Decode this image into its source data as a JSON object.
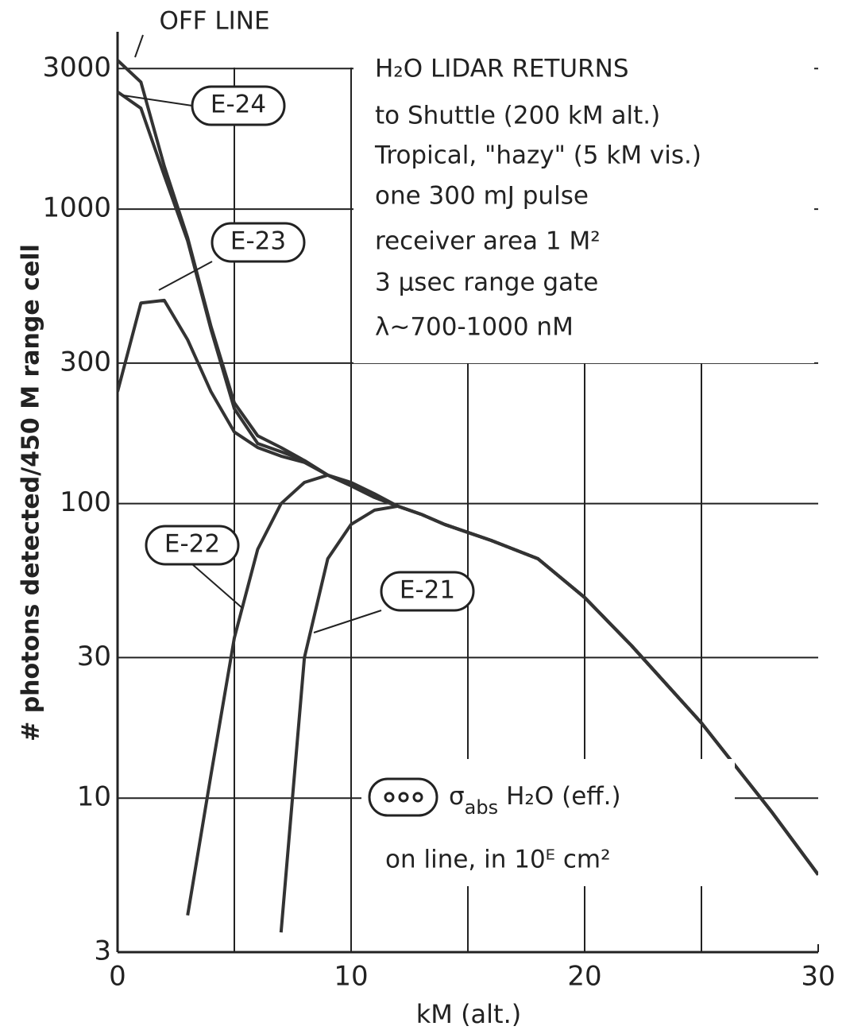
{
  "chart_data": {
    "type": "line",
    "title": "H₂O LIDAR RETURNS",
    "subtitle": [
      "to Shuttle (200 kM alt.)",
      "Tropical, \"hazy\" (5 kM vis.)",
      "one 300 mJ pulse",
      "receiver area 1 M²",
      "3 μsec range gate",
      "λ~700-1000 nM"
    ],
    "xlabel": "kM (alt.)",
    "ylabel": "# photons detected/450 M range cell",
    "x": [
      0,
      1,
      2,
      3,
      4,
      5,
      6,
      7,
      8,
      9,
      10,
      11,
      12,
      13,
      14,
      16,
      18,
      20,
      22,
      25,
      28,
      30
    ],
    "series": [
      {
        "name": "OFF LINE",
        "color": "#333333",
        "values": [
          3200,
          2700,
          1400,
          800,
          400,
          220,
          170,
          155,
          140,
          125,
          115,
          105,
          98,
          92,
          85,
          75,
          65,
          48,
          33,
          18,
          9,
          5.5
        ]
      },
      {
        "name": "E-24",
        "color": "#333333",
        "values": [
          2500,
          2200,
          1300,
          780,
          390,
          210,
          160,
          150,
          140,
          125,
          115,
          105,
          98,
          92,
          85,
          75,
          65,
          48,
          33,
          18,
          9,
          5.5
        ]
      },
      {
        "name": "E-23",
        "color": "#333333",
        "values": [
          240,
          480,
          490,
          360,
          240,
          175,
          155,
          145,
          138,
          125,
          115,
          105,
          98,
          92,
          85,
          75,
          65,
          48,
          33,
          18,
          9,
          5.5
        ]
      },
      {
        "name": "E-22",
        "color": "#333333",
        "values": [
          null,
          null,
          null,
          4,
          12,
          35,
          70,
          100,
          118,
          125,
          118,
          108,
          98,
          92,
          85,
          75,
          65,
          48,
          33,
          18,
          9,
          5.5
        ]
      },
      {
        "name": "E-21",
        "color": "#333333",
        "values": [
          null,
          null,
          null,
          null,
          null,
          null,
          null,
          3.5,
          30,
          65,
          85,
          95,
          98,
          92,
          85,
          75,
          65,
          48,
          33,
          18,
          9,
          5.5
        ]
      }
    ],
    "legend_note": {
      "symbol": "σ",
      "subscript": "abs",
      "text": "H₂O (eff.)",
      "line2": "on line, in 10ᴱ cm²"
    },
    "xlim": [
      0,
      30
    ],
    "xticks": [
      0,
      10,
      20,
      30
    ],
    "xgrid": [
      5,
      10,
      15,
      20,
      25
    ],
    "ylim": [
      3,
      4000
    ],
    "yticks": [
      3,
      10,
      30,
      100,
      300,
      1000,
      3000
    ],
    "log_y": true,
    "grid": true
  }
}
